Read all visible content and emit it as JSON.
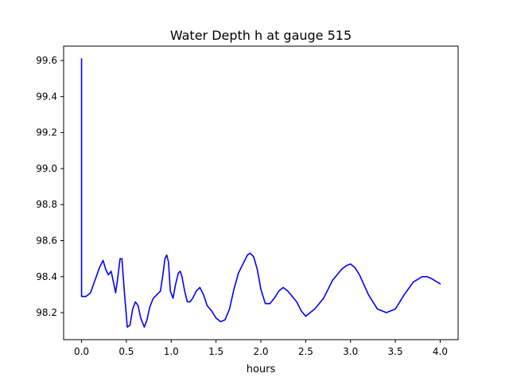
{
  "chart_data": {
    "type": "line",
    "title": "Water Depth h at gauge 515",
    "xlabel": "hours",
    "ylabel": "",
    "xlim": [
      -0.2,
      4.2
    ],
    "ylim": [
      98.05,
      99.68
    ],
    "xticks": [
      0.0,
      0.5,
      1.0,
      1.5,
      2.0,
      2.5,
      3.0,
      3.5,
      4.0
    ],
    "xtick_labels": [
      "0.0",
      "0.5",
      "1.0",
      "1.5",
      "2.0",
      "2.5",
      "3.0",
      "3.5",
      "4.0"
    ],
    "yticks": [
      98.2,
      98.4,
      98.6,
      98.8,
      99.0,
      99.2,
      99.4,
      99.6
    ],
    "ytick_labels": [
      "98.2",
      "98.4",
      "98.6",
      "98.8",
      "99.0",
      "99.2",
      "99.4",
      "99.6"
    ],
    "grid": false,
    "series": [
      {
        "color": "#0000ff",
        "x": [
          0.0,
          0.0,
          0.01,
          0.05,
          0.1,
          0.15,
          0.2,
          0.24,
          0.27,
          0.3,
          0.33,
          0.36,
          0.38,
          0.4,
          0.43,
          0.45,
          0.48,
          0.51,
          0.54,
          0.57,
          0.6,
          0.63,
          0.66,
          0.7,
          0.73,
          0.76,
          0.8,
          0.84,
          0.88,
          0.91,
          0.93,
          0.95,
          0.97,
          0.99,
          1.02,
          1.05,
          1.08,
          1.1,
          1.12,
          1.15,
          1.18,
          1.21,
          1.24,
          1.28,
          1.32,
          1.36,
          1.4,
          1.45,
          1.5,
          1.55,
          1.6,
          1.65,
          1.7,
          1.75,
          1.8,
          1.85,
          1.88,
          1.92,
          1.96,
          2.0,
          2.05,
          2.1,
          2.15,
          2.2,
          2.25,
          2.3,
          2.35,
          2.4,
          2.45,
          2.5,
          2.55,
          2.6,
          2.7,
          2.8,
          2.9,
          2.95,
          3.0,
          3.05,
          3.1,
          3.2,
          3.3,
          3.4,
          3.5,
          3.6,
          3.7,
          3.8,
          3.85,
          3.9,
          4.0
        ],
        "y": [
          99.61,
          98.29,
          98.29,
          98.29,
          98.31,
          98.38,
          98.45,
          98.49,
          98.44,
          98.41,
          98.43,
          98.36,
          98.31,
          98.38,
          98.5,
          98.5,
          98.3,
          98.12,
          98.13,
          98.22,
          98.26,
          98.24,
          98.17,
          98.12,
          98.16,
          98.23,
          98.28,
          98.3,
          98.32,
          98.42,
          98.5,
          98.52,
          98.48,
          98.32,
          98.28,
          98.36,
          98.42,
          98.43,
          98.4,
          98.32,
          98.26,
          98.26,
          98.28,
          98.32,
          98.34,
          98.3,
          98.24,
          98.21,
          98.17,
          98.15,
          98.16,
          98.22,
          98.33,
          98.42,
          98.47,
          98.52,
          98.53,
          98.51,
          98.44,
          98.33,
          98.25,
          98.25,
          98.28,
          98.32,
          98.34,
          98.32,
          98.29,
          98.26,
          98.21,
          98.18,
          98.2,
          98.22,
          98.28,
          98.38,
          98.44,
          98.46,
          98.47,
          98.45,
          98.41,
          98.3,
          98.22,
          98.2,
          98.22,
          98.3,
          98.37,
          98.4,
          98.4,
          98.39,
          98.36
        ]
      }
    ]
  }
}
